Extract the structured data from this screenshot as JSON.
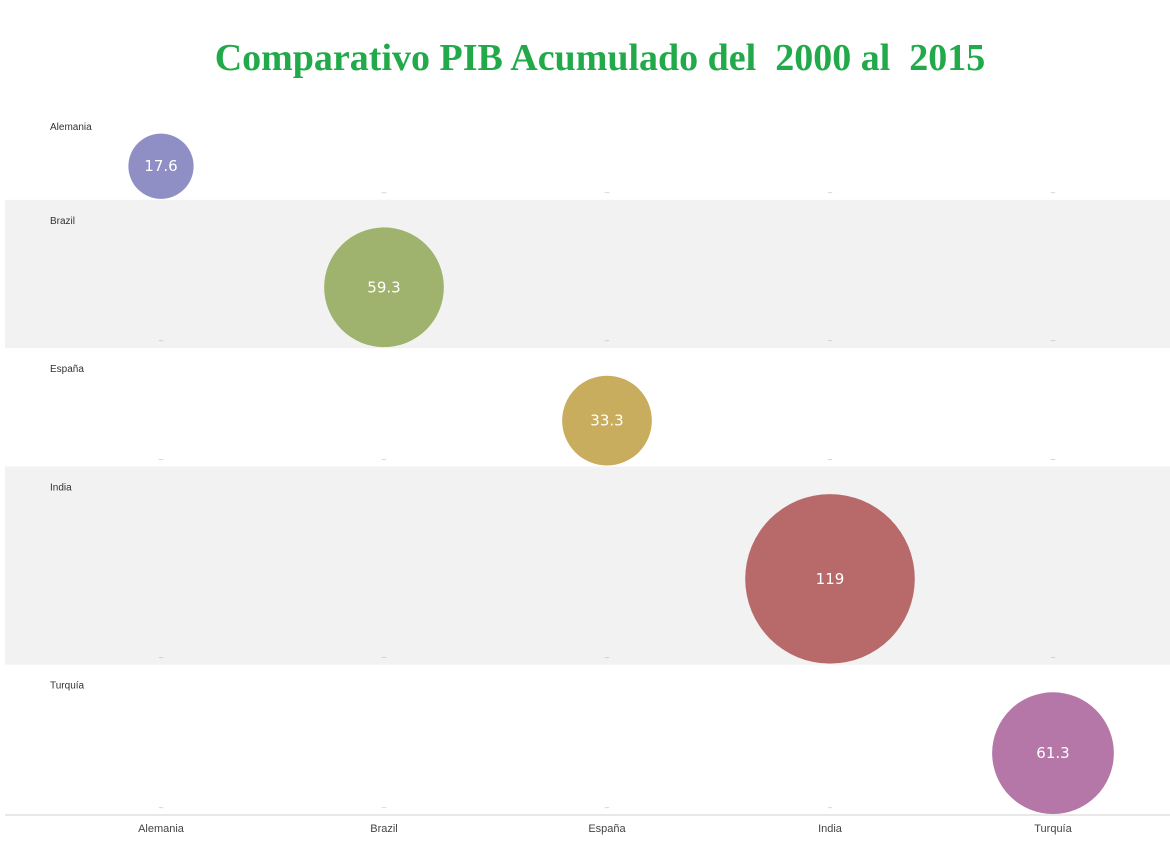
{
  "chart_data": {
    "type": "scatter",
    "title": "Comparativo PIB Acumulado del  2000 al  2015",
    "categories": [
      "Alemania",
      "Brazil",
      "España",
      "India",
      "Turquía"
    ],
    "rows": [
      "Alemania",
      "Brazil",
      "España",
      "India",
      "Turquía"
    ],
    "values": [
      17.6,
      59.3,
      33.3,
      119,
      61.3
    ],
    "value_labels": [
      "17.6",
      "59.3",
      "33.3",
      "119",
      "61.3"
    ],
    "colors": [
      "#8f8fc6",
      "#9fb26e",
      "#c9ad5e",
      "#b86a6a",
      "#b576a8"
    ],
    "empty_cell_mark": "–",
    "row_band_color": "#f2f2f2",
    "grid": false,
    "legend": "none"
  }
}
